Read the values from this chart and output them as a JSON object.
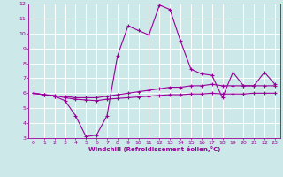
{
  "xlabel": "Windchill (Refroidissement éolien,°C)",
  "background_color": "#cce8e8",
  "grid_color": "#ffffff",
  "line_color": "#990099",
  "xlim": [
    -0.5,
    23.5
  ],
  "ylim": [
    3,
    12
  ],
  "xticks": [
    0,
    1,
    2,
    3,
    4,
    5,
    6,
    7,
    8,
    9,
    10,
    11,
    12,
    13,
    14,
    15,
    16,
    17,
    18,
    19,
    20,
    21,
    22,
    23
  ],
  "yticks": [
    3,
    4,
    5,
    6,
    7,
    8,
    9,
    10,
    11,
    12
  ],
  "series": [
    [
      6.0,
      5.9,
      5.8,
      5.5,
      4.5,
      3.1,
      3.2,
      4.5,
      8.5,
      10.5,
      10.2,
      9.9,
      11.9,
      11.6,
      9.5,
      7.6,
      7.3,
      7.2,
      5.7,
      7.4,
      6.5,
      6.5,
      7.4,
      6.6
    ],
    [
      6.0,
      5.9,
      5.8,
      5.8,
      5.7,
      5.7,
      5.7,
      5.8,
      5.9,
      6.0,
      6.1,
      6.2,
      6.3,
      6.4,
      6.4,
      6.5,
      6.5,
      6.6,
      6.5,
      6.5,
      6.5,
      6.5,
      6.5,
      6.5
    ],
    [
      6.0,
      5.9,
      5.85,
      5.7,
      5.6,
      5.55,
      5.5,
      5.6,
      5.65,
      5.7,
      5.75,
      5.8,
      5.85,
      5.9,
      5.9,
      5.95,
      5.95,
      6.0,
      5.95,
      5.95,
      5.95,
      6.0,
      6.0,
      6.0
    ]
  ]
}
